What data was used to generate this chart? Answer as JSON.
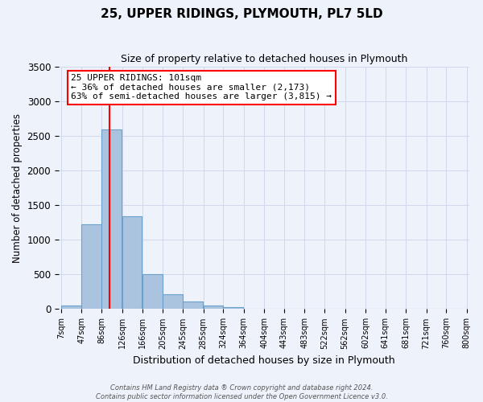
{
  "title": "25, UPPER RIDINGS, PLYMOUTH, PL7 5LD",
  "subtitle": "Size of property relative to detached houses in Plymouth",
  "xlabel": "Distribution of detached houses by size in Plymouth",
  "ylabel": "Number of detached properties",
  "bin_labels": [
    "7sqm",
    "47sqm",
    "86sqm",
    "126sqm",
    "166sqm",
    "205sqm",
    "245sqm",
    "285sqm",
    "324sqm",
    "364sqm",
    "404sqm",
    "443sqm",
    "483sqm",
    "522sqm",
    "562sqm",
    "602sqm",
    "641sqm",
    "681sqm",
    "721sqm",
    "760sqm",
    "800sqm"
  ],
  "bar_values": [
    50,
    1230,
    2590,
    1340,
    500,
    210,
    110,
    50,
    25,
    10,
    5,
    0,
    0,
    0,
    0,
    0,
    0,
    0,
    0,
    0
  ],
  "bar_color": "#aac4e0",
  "bar_edge_color": "#6aa0cc",
  "vline_x": 101,
  "vline_color": "red",
  "annotation_title": "25 UPPER RIDINGS: 101sqm",
  "annotation_line1": "← 36% of detached houses are smaller (2,173)",
  "annotation_line2": "63% of semi-detached houses are larger (3,815) →",
  "annotation_box_color": "white",
  "annotation_box_edge": "red",
  "ylim": [
    0,
    3500
  ],
  "bin_starts": [
    7,
    47,
    86,
    126,
    166,
    205,
    245,
    285,
    324,
    364,
    404,
    443,
    483,
    522,
    562,
    602,
    641,
    681,
    721,
    760
  ],
  "bin_width": 39,
  "footer_line1": "Contains HM Land Registry data ® Crown copyright and database right 2024.",
  "footer_line2": "Contains public sector information licensed under the Open Government Licence v3.0.",
  "bg_color": "#eef2fb",
  "grid_color": "#d0d8ee"
}
